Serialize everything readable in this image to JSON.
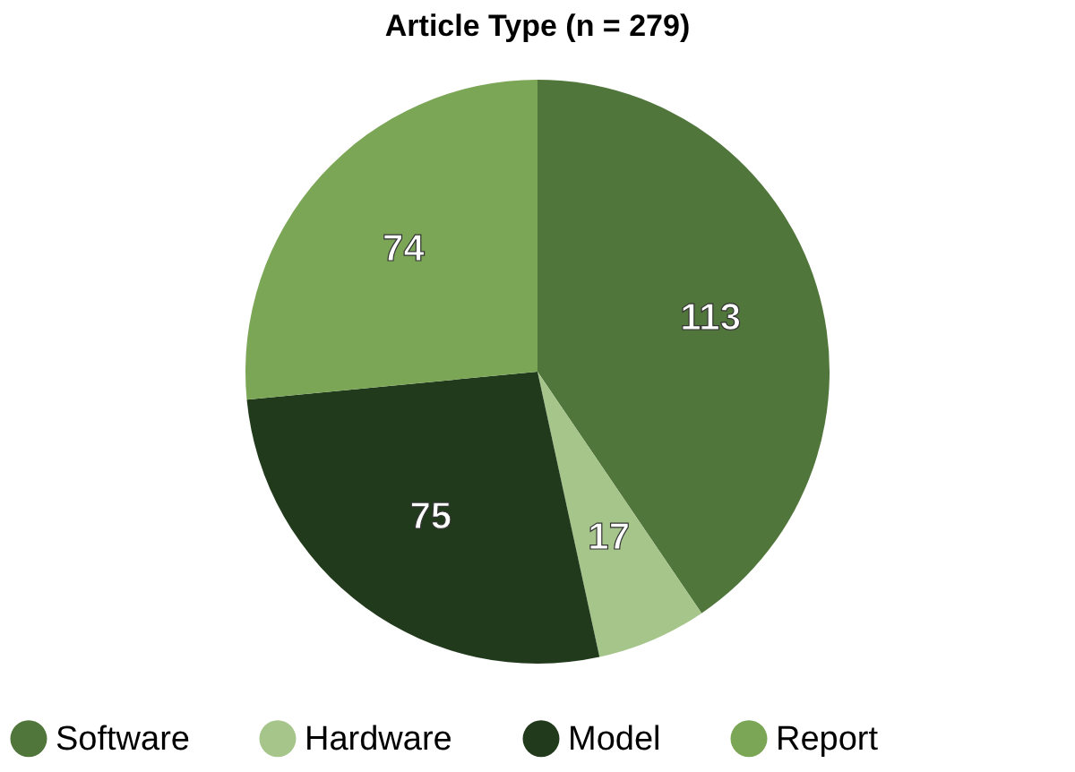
{
  "chart_data": {
    "type": "pie",
    "title": "Article Type (n = 279)",
    "categories": [
      "Software",
      "Hardware",
      "Model",
      "Report"
    ],
    "values": [
      113,
      17,
      75,
      74
    ],
    "colors": [
      "#51763b",
      "#a5c58b",
      "#223a1c",
      "#7ba656"
    ],
    "data_labels": true,
    "legend": "bottom"
  }
}
